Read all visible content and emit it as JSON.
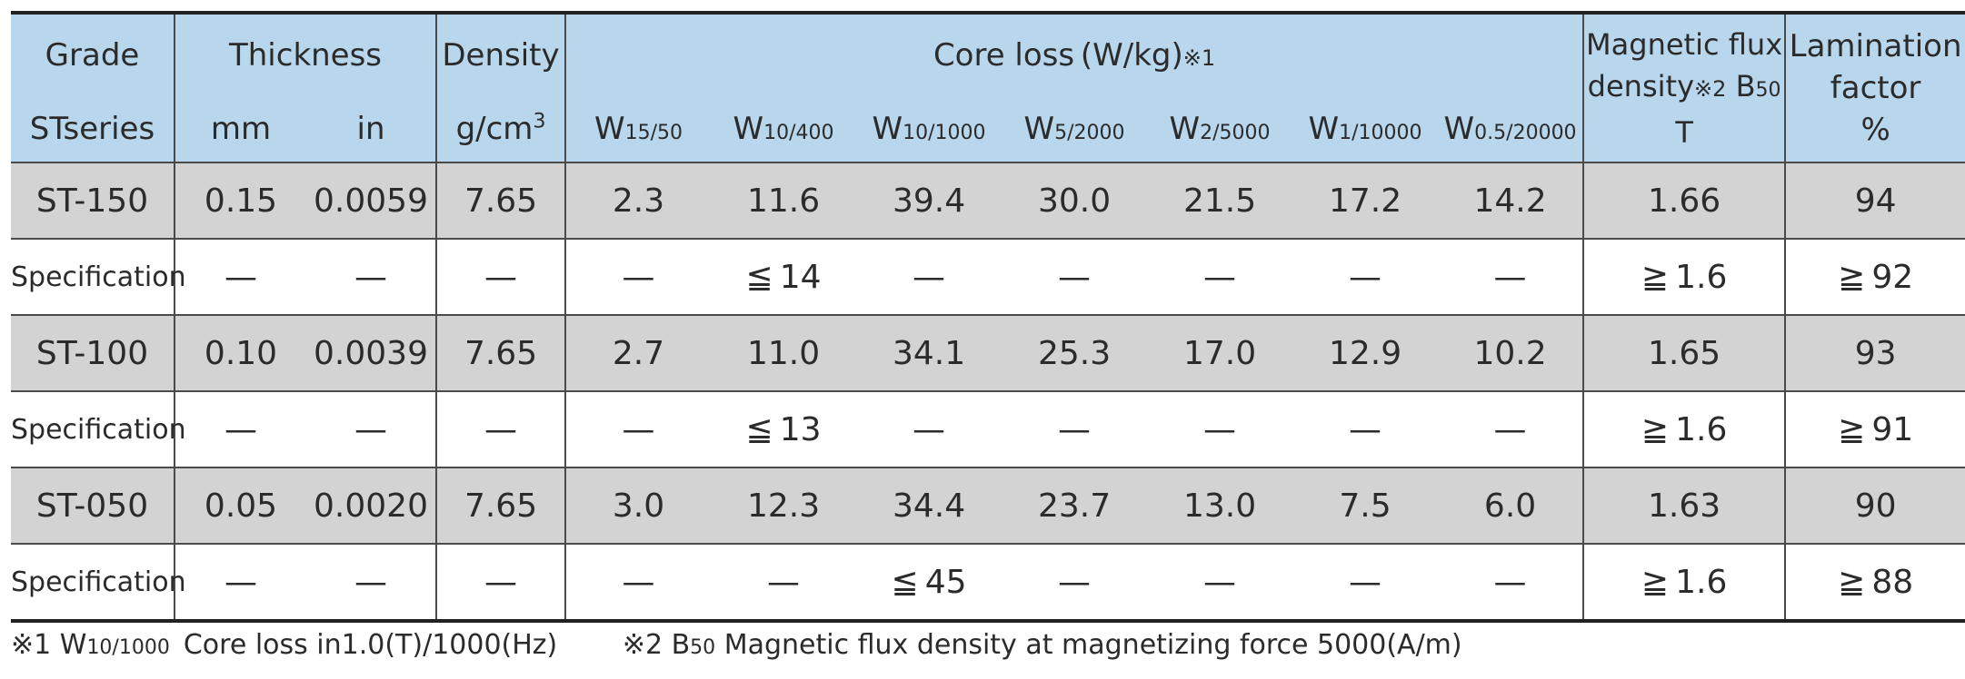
{
  "header": {
    "grade": "Grade",
    "stseries": "STseries",
    "thickness": "Thickness",
    "mm": "mm",
    "in": "in",
    "density": "Density",
    "density_unit": "g/cm",
    "density_unit_sup": "3",
    "core_loss": "Core loss (W/kg)",
    "core_loss_note": "※1",
    "w_cols": [
      {
        "w": "W",
        "sub": "15/50"
      },
      {
        "w": "W",
        "sub": "10/400"
      },
      {
        "w": "W",
        "sub": "10/1000"
      },
      {
        "w": "W",
        "sub": "5/2000"
      },
      {
        "w": "W",
        "sub": "2/5000"
      },
      {
        "w": "W",
        "sub": "1/10000"
      },
      {
        "w": "W",
        "sub": "0.5/20000"
      }
    ],
    "mag_line1": "Magnetic flux",
    "mag_line2": "density",
    "mag_note": "※2",
    "mag_b": "B",
    "mag_b_sub": "50",
    "mag_unit": "T",
    "lam_line1": "Lamination",
    "lam_line2": "factor",
    "lam_unit": "%"
  },
  "rows": [
    {
      "kind": "grade",
      "cells": [
        "ST-150",
        "0.15",
        "0.0059",
        "7.65",
        "2.3",
        "11.6",
        "39.4",
        "30.0",
        "21.5",
        "17.2",
        "14.2",
        "1.66",
        "94"
      ]
    },
    {
      "kind": "spec",
      "cells": [
        "Specification",
        "—",
        "—",
        "—",
        "—",
        "≦ 14",
        "—",
        "—",
        "—",
        "—",
        "—",
        "≧ 1.6",
        "≧ 92"
      ]
    },
    {
      "kind": "grade",
      "cells": [
        "ST-100",
        "0.10",
        "0.0039",
        "7.65",
        "2.7",
        "11.0",
        "34.1",
        "25.3",
        "17.0",
        "12.9",
        "10.2",
        "1.65",
        "93"
      ]
    },
    {
      "kind": "spec",
      "cells": [
        "Specification",
        "—",
        "—",
        "—",
        "—",
        "≦ 13",
        "—",
        "—",
        "—",
        "—",
        "—",
        "≧ 1.6",
        "≧ 91"
      ]
    },
    {
      "kind": "grade",
      "cells": [
        "ST-050",
        "0.05",
        "0.0020",
        "7.65",
        "3.0",
        "12.3",
        "34.4",
        "23.7",
        "13.0",
        "7.5",
        "6.0",
        "1.63",
        "90"
      ]
    },
    {
      "kind": "spec",
      "cells": [
        "Specification",
        "—",
        "—",
        "—",
        "—",
        "—",
        "≦ 45",
        "—",
        "—",
        "—",
        "—",
        "≧ 1.6",
        "≧ 88"
      ]
    }
  ],
  "footnotes": {
    "fn1_mark": "※1 ",
    "fn1_w": "W",
    "fn1_sub": "10/1000",
    "fn1_text": " Core loss in1.0(T)/1000(Hz)",
    "fn2_mark": "※2 ",
    "fn2_b": "B",
    "fn2_sub": "50",
    "fn2_text": " Magnetic flux density at magnetizing force 5000(A/m)"
  }
}
